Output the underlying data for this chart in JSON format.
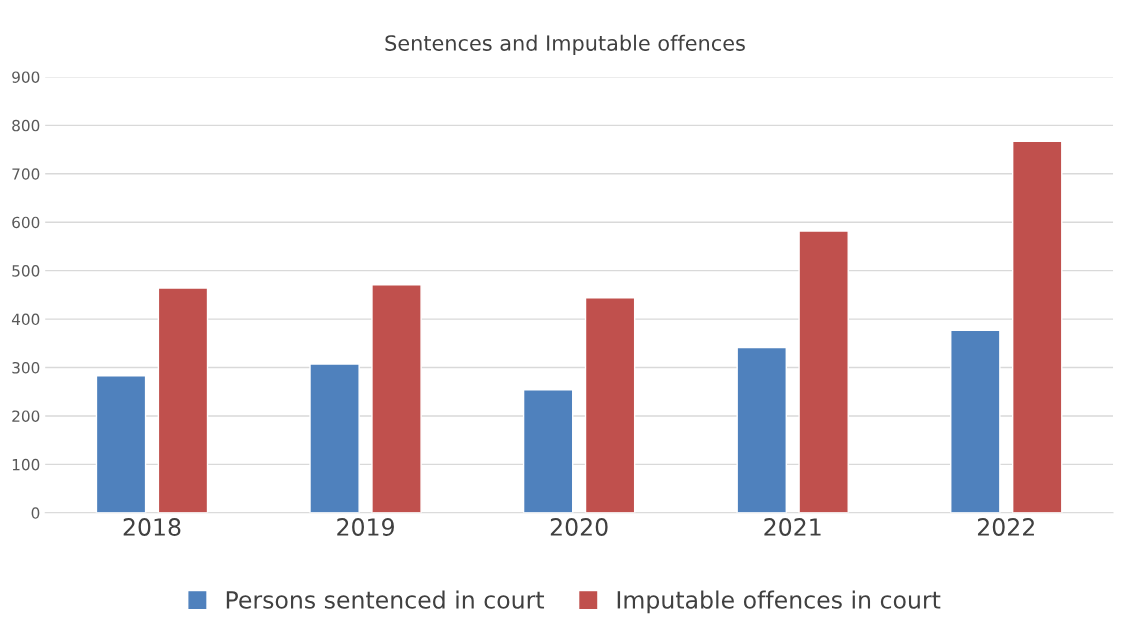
{
  "chart_data": {
    "type": "bar",
    "title": "Sentences and Imputable offences",
    "categories": [
      "2018",
      "2019",
      "2020",
      "2021",
      "2022"
    ],
    "series": [
      {
        "name": "Persons sentenced in court",
        "color": "#4f81bd",
        "values": [
          283,
          307,
          254,
          341,
          377
        ]
      },
      {
        "name": "Imputable offences in court",
        "color": "#c0504d",
        "values": [
          464,
          471,
          444,
          582,
          767
        ]
      }
    ],
    "ylim": [
      0,
      900
    ],
    "yticks": [
      0,
      100,
      200,
      300,
      400,
      500,
      600,
      700,
      800,
      900
    ],
    "grid": "y",
    "legend": "bottom"
  }
}
